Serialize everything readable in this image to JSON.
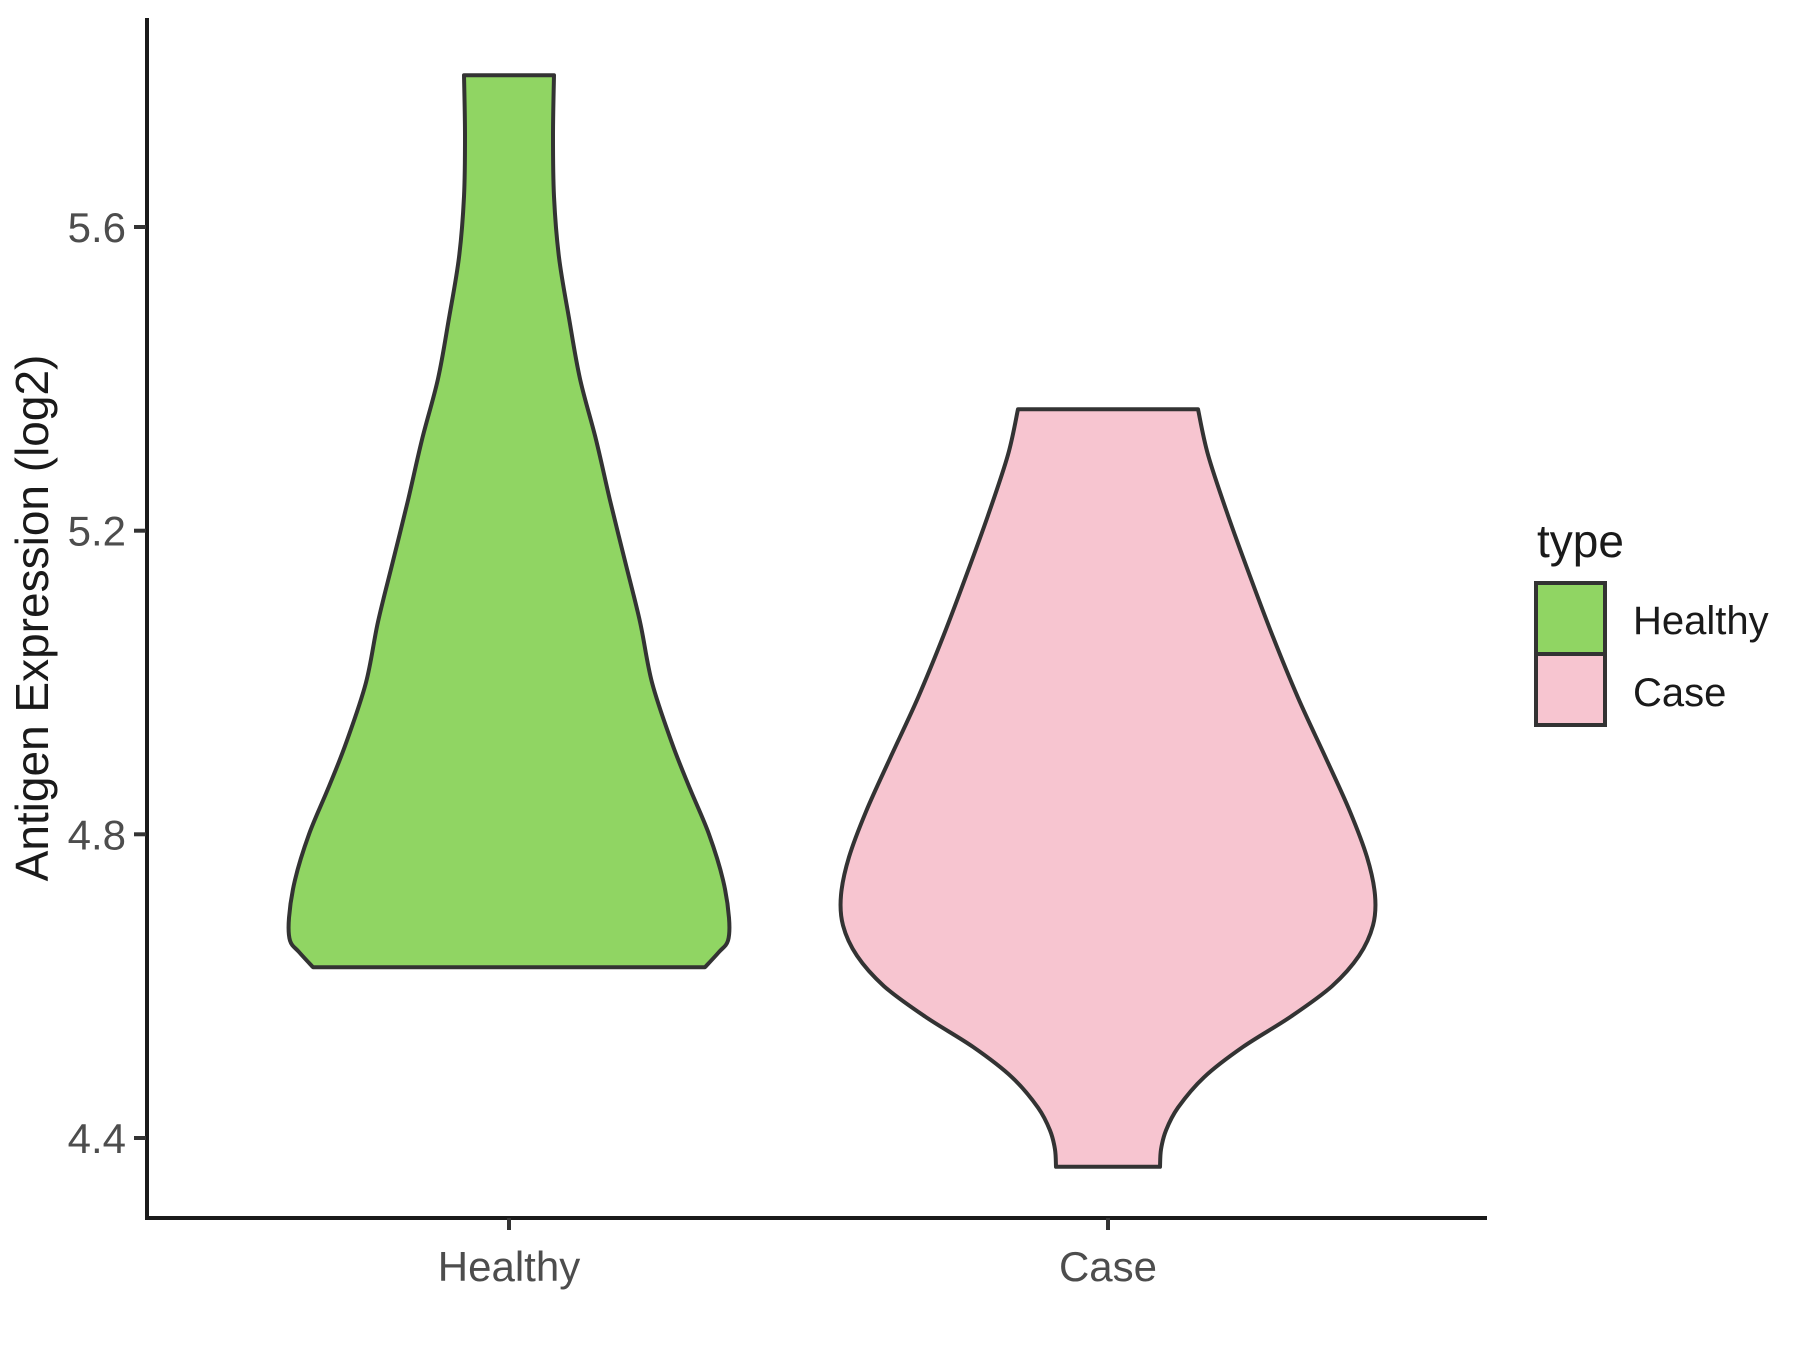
{
  "figure": {
    "background": "#ffffff"
  },
  "chart_data": {
    "type": "violin",
    "title": "",
    "xlabel": "",
    "ylabel": "Antigen Expression (log2)",
    "categories": [
      "Healthy",
      "Case"
    ],
    "y_ticks": [
      5.6,
      5.2,
      4.8,
      4.4
    ],
    "y_tick_labels": [
      "5.6",
      "5.2",
      "4.8",
      "4.4"
    ],
    "ylim": [
      4.3,
      5.87
    ],
    "grid": false,
    "axis_line_color": "#1a1a1a",
    "tick_color": "#333333",
    "tick_text_color": "#4d4d4d",
    "legend": {
      "title": "type",
      "position": "right",
      "entries": [
        {
          "label": "Healthy",
          "color": "#90D563"
        },
        {
          "label": "Case",
          "color": "#F7C5D0"
        }
      ]
    },
    "series": [
      {
        "name": "Healthy",
        "fill": "#90D563",
        "outline": "#333333",
        "value_range": [
          4.62,
          5.8
        ],
        "flat_top_value": 5.8,
        "flat_bottom_value": 4.62,
        "profile": [
          [
            5.8,
            45
          ],
          [
            5.72,
            44
          ],
          [
            5.64,
            45
          ],
          [
            5.56,
            50
          ],
          [
            5.48,
            60
          ],
          [
            5.4,
            71
          ],
          [
            5.32,
            87
          ],
          [
            5.24,
            101
          ],
          [
            5.16,
            116
          ],
          [
            5.08,
            131
          ],
          [
            5.0,
            143
          ],
          [
            4.92,
            163
          ],
          [
            4.86,
            181
          ],
          [
            4.8,
            200
          ],
          [
            4.74,
            214
          ],
          [
            4.69,
            220
          ],
          [
            4.66,
            219
          ],
          [
            4.645,
            210
          ],
          [
            4.625,
            196
          ]
        ]
      },
      {
        "name": "Case",
        "fill": "#F7C5D0",
        "outline": "#333333",
        "value_range": [
          4.36,
          5.36
        ],
        "flat_top_value": 5.36,
        "flat_bottom_value": 4.36,
        "profile": [
          [
            5.36,
            90
          ],
          [
            5.3,
            100
          ],
          [
            5.22,
            120
          ],
          [
            5.14,
            142
          ],
          [
            5.06,
            165
          ],
          [
            4.98,
            190
          ],
          [
            4.9,
            218
          ],
          [
            4.83,
            242
          ],
          [
            4.77,
            259
          ],
          [
            4.72,
            267
          ],
          [
            4.68,
            265
          ],
          [
            4.64,
            251
          ],
          [
            4.6,
            224
          ],
          [
            4.56,
            183
          ],
          [
            4.52,
            135
          ],
          [
            4.48,
            96
          ],
          [
            4.44,
            70
          ],
          [
            4.41,
            58
          ],
          [
            4.385,
            53
          ],
          [
            4.362,
            52
          ]
        ]
      }
    ]
  }
}
